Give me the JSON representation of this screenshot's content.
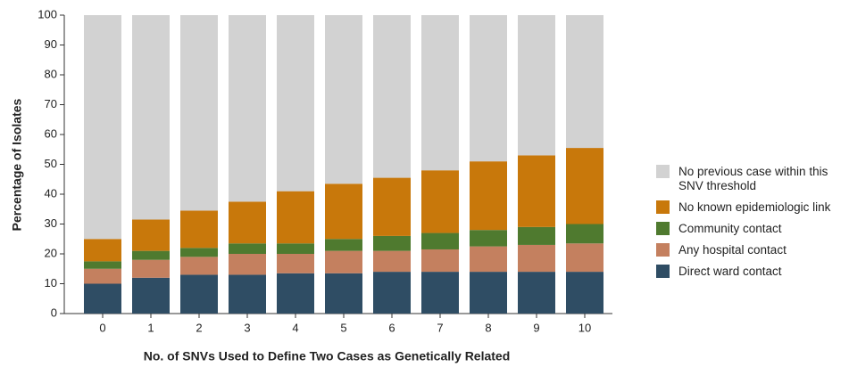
{
  "chart_data": {
    "type": "stacked_bar",
    "x_label": "No. of SNVs Used to Define Two Cases as Genetically Related",
    "y_label": "Percentage of Isolates",
    "categories": [
      "0",
      "1",
      "2",
      "3",
      "4",
      "5",
      "6",
      "7",
      "8",
      "9",
      "10"
    ],
    "series": [
      {
        "name": "Direct ward contact",
        "color": "#2f4d64",
        "values": [
          10,
          12,
          13,
          13,
          13.5,
          13.5,
          14,
          14,
          14,
          14,
          14
        ]
      },
      {
        "name": "Any hospital contact",
        "color": "#c4805f",
        "values": [
          5,
          6,
          6,
          7,
          6.5,
          7.5,
          7,
          7.5,
          8.5,
          9,
          9.5
        ]
      },
      {
        "name": "Community contact",
        "color": "#4f7a2f",
        "values": [
          2.5,
          3,
          3,
          3.5,
          3.5,
          4,
          5,
          5.5,
          5.5,
          6,
          6.5
        ]
      },
      {
        "name": "No known epidemiologic link",
        "color": "#c8780b",
        "values": [
          7.5,
          10.5,
          12.5,
          14,
          17.5,
          18.5,
          19.5,
          21,
          23,
          24,
          25.5
        ]
      },
      {
        "name": "No previous case within this SNV threshold",
        "color": "#d2d2d2",
        "values": [
          75,
          68.5,
          65.5,
          62.5,
          59,
          56.5,
          54.5,
          52,
          49,
          47,
          44.5
        ]
      }
    ],
    "ylim": [
      0,
      100
    ],
    "yticks": [
      0,
      10,
      20,
      30,
      40,
      50,
      60,
      70,
      80,
      90,
      100
    ]
  }
}
